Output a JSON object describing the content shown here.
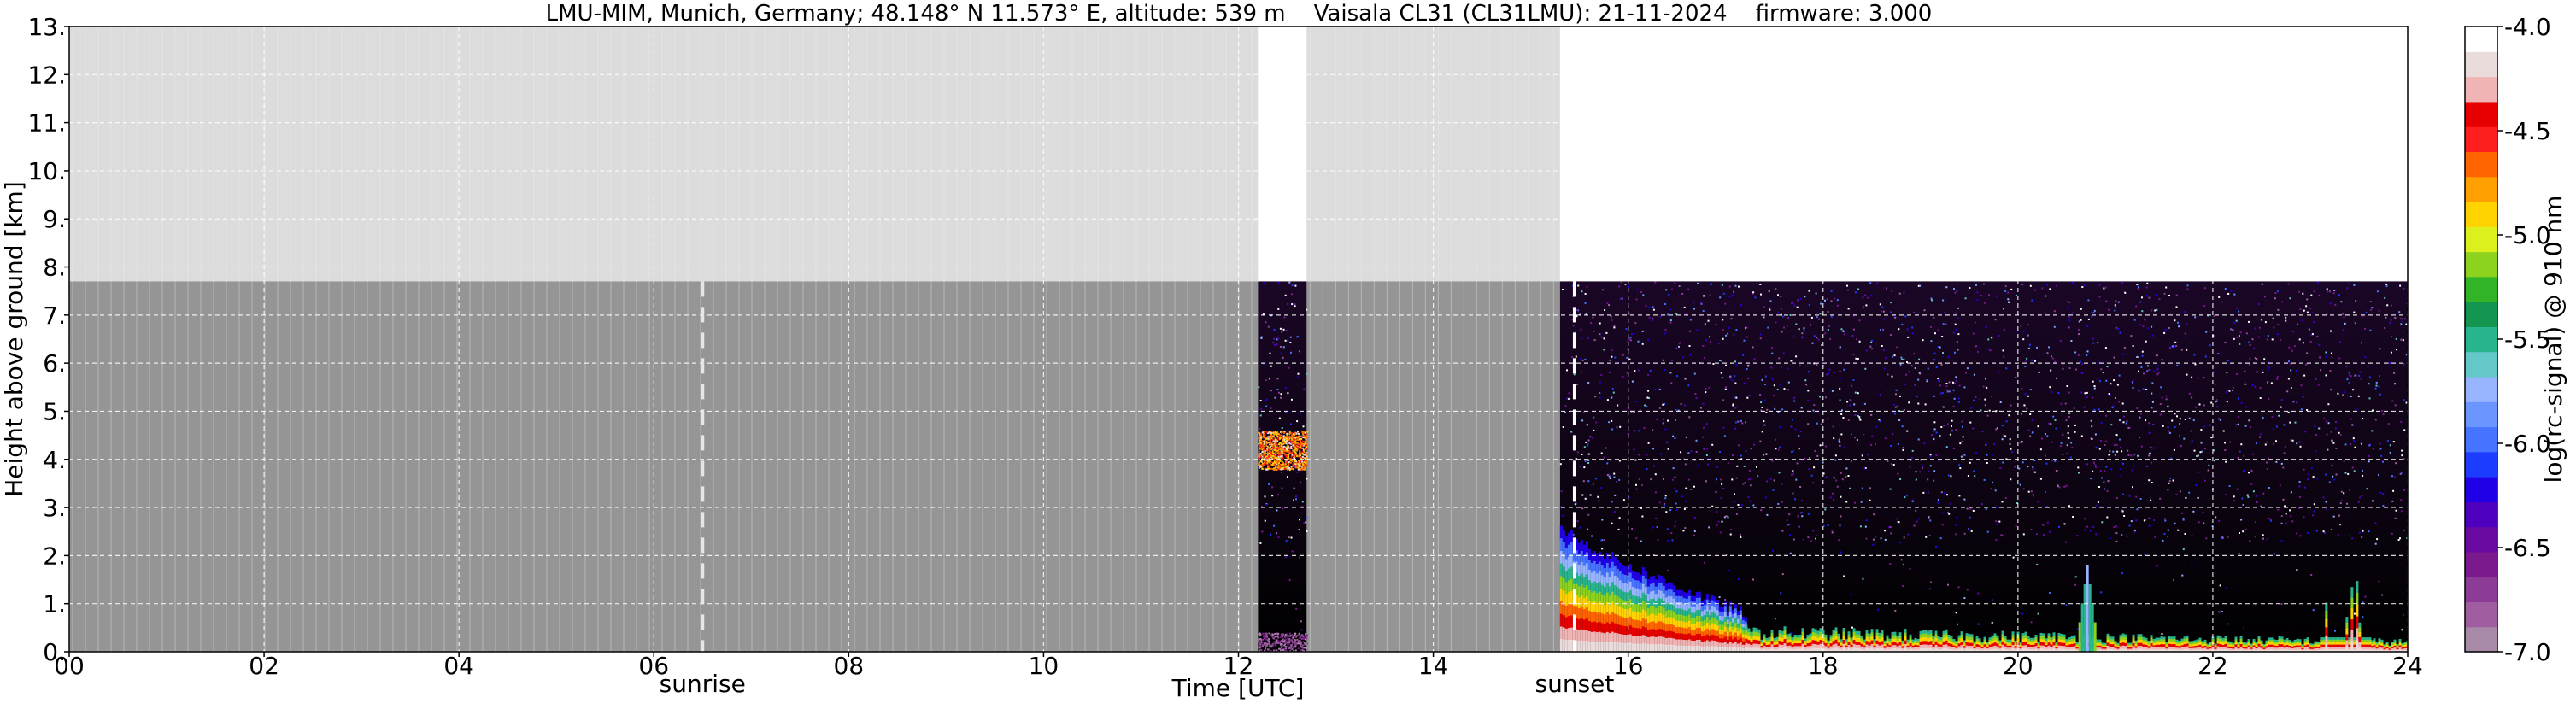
{
  "chart_data": {
    "type": "heatmap",
    "title": "LMU-MIM, Munich, Germany; 48.148° N 11.573° E, altitude: 539 m    Vaisala CL31 (CL31LMU): 21-11-2024    firmware: 3.000",
    "xlabel": "Time [UTC]",
    "ylabel": "Height above ground [km]",
    "xlim": [
      0,
      24
    ],
    "ylim": [
      0,
      13
    ],
    "x_ticks": [
      "00",
      "02",
      "04",
      "06",
      "08",
      "10",
      "12",
      "14",
      "16",
      "18",
      "20",
      "22",
      "24"
    ],
    "y_ticks": [
      "0.",
      "1.",
      "2.",
      "3.",
      "4.",
      "5.",
      "6.",
      "7.",
      "8.",
      "9.",
      "10.",
      "11.",
      "12.",
      "13."
    ],
    "grid": true,
    "instrument_max_height_km": 7.7,
    "no_data_periods_utc": [
      [
        0,
        12.2
      ],
      [
        12.7,
        15.3
      ]
    ],
    "data_periods_utc": [
      [
        12.2,
        12.7
      ],
      [
        15.3,
        24
      ]
    ],
    "events": [
      {
        "label": "sunrise",
        "x": 6.5
      },
      {
        "label": "sunset",
        "x": 15.45
      }
    ],
    "colorbar": {
      "label": "log(rc-signal) @ 910 nm",
      "min": -7.0,
      "max": -4.0,
      "ticks": [
        "-4.0",
        "-4.5",
        "-5.0",
        "-5.5",
        "-6.0",
        "-6.5",
        "-7.0"
      ],
      "colors": [
        "#a88aa8",
        "#a05ea0",
        "#8c3c96",
        "#7a1a8c",
        "#6a0aa0",
        "#4e00be",
        "#2000e6",
        "#1e3cff",
        "#4673ff",
        "#6c96ff",
        "#96b4ff",
        "#64c8c8",
        "#28b48c",
        "#149650",
        "#32b428",
        "#8cd21e",
        "#dcf01e",
        "#ffd200",
        "#ffa000",
        "#ff6400",
        "#ff1e1e",
        "#e60000",
        "#f0b4b4",
        "#ebdcdc",
        "#ffffff"
      ]
    },
    "features": [
      {
        "name": "lofted aerosol layer",
        "x_range": [
          12.2,
          12.7
        ],
        "height_range_km": [
          3.8,
          4.6
        ]
      },
      {
        "name": "boundary layer",
        "x_range": [
          15.3,
          17.2
        ],
        "top_km_start": 2.6,
        "top_km_end": 0.8
      },
      {
        "name": "shallow surface layer",
        "x_range": [
          17.2,
          24
        ],
        "top_km": 0.5
      },
      {
        "name": "cloud spike",
        "x": 20.7,
        "top_km": 1.8
      },
      {
        "name": "cloud spikes",
        "x_range": [
          23.1,
          23.6
        ],
        "top_km": 1.5
      }
    ]
  }
}
